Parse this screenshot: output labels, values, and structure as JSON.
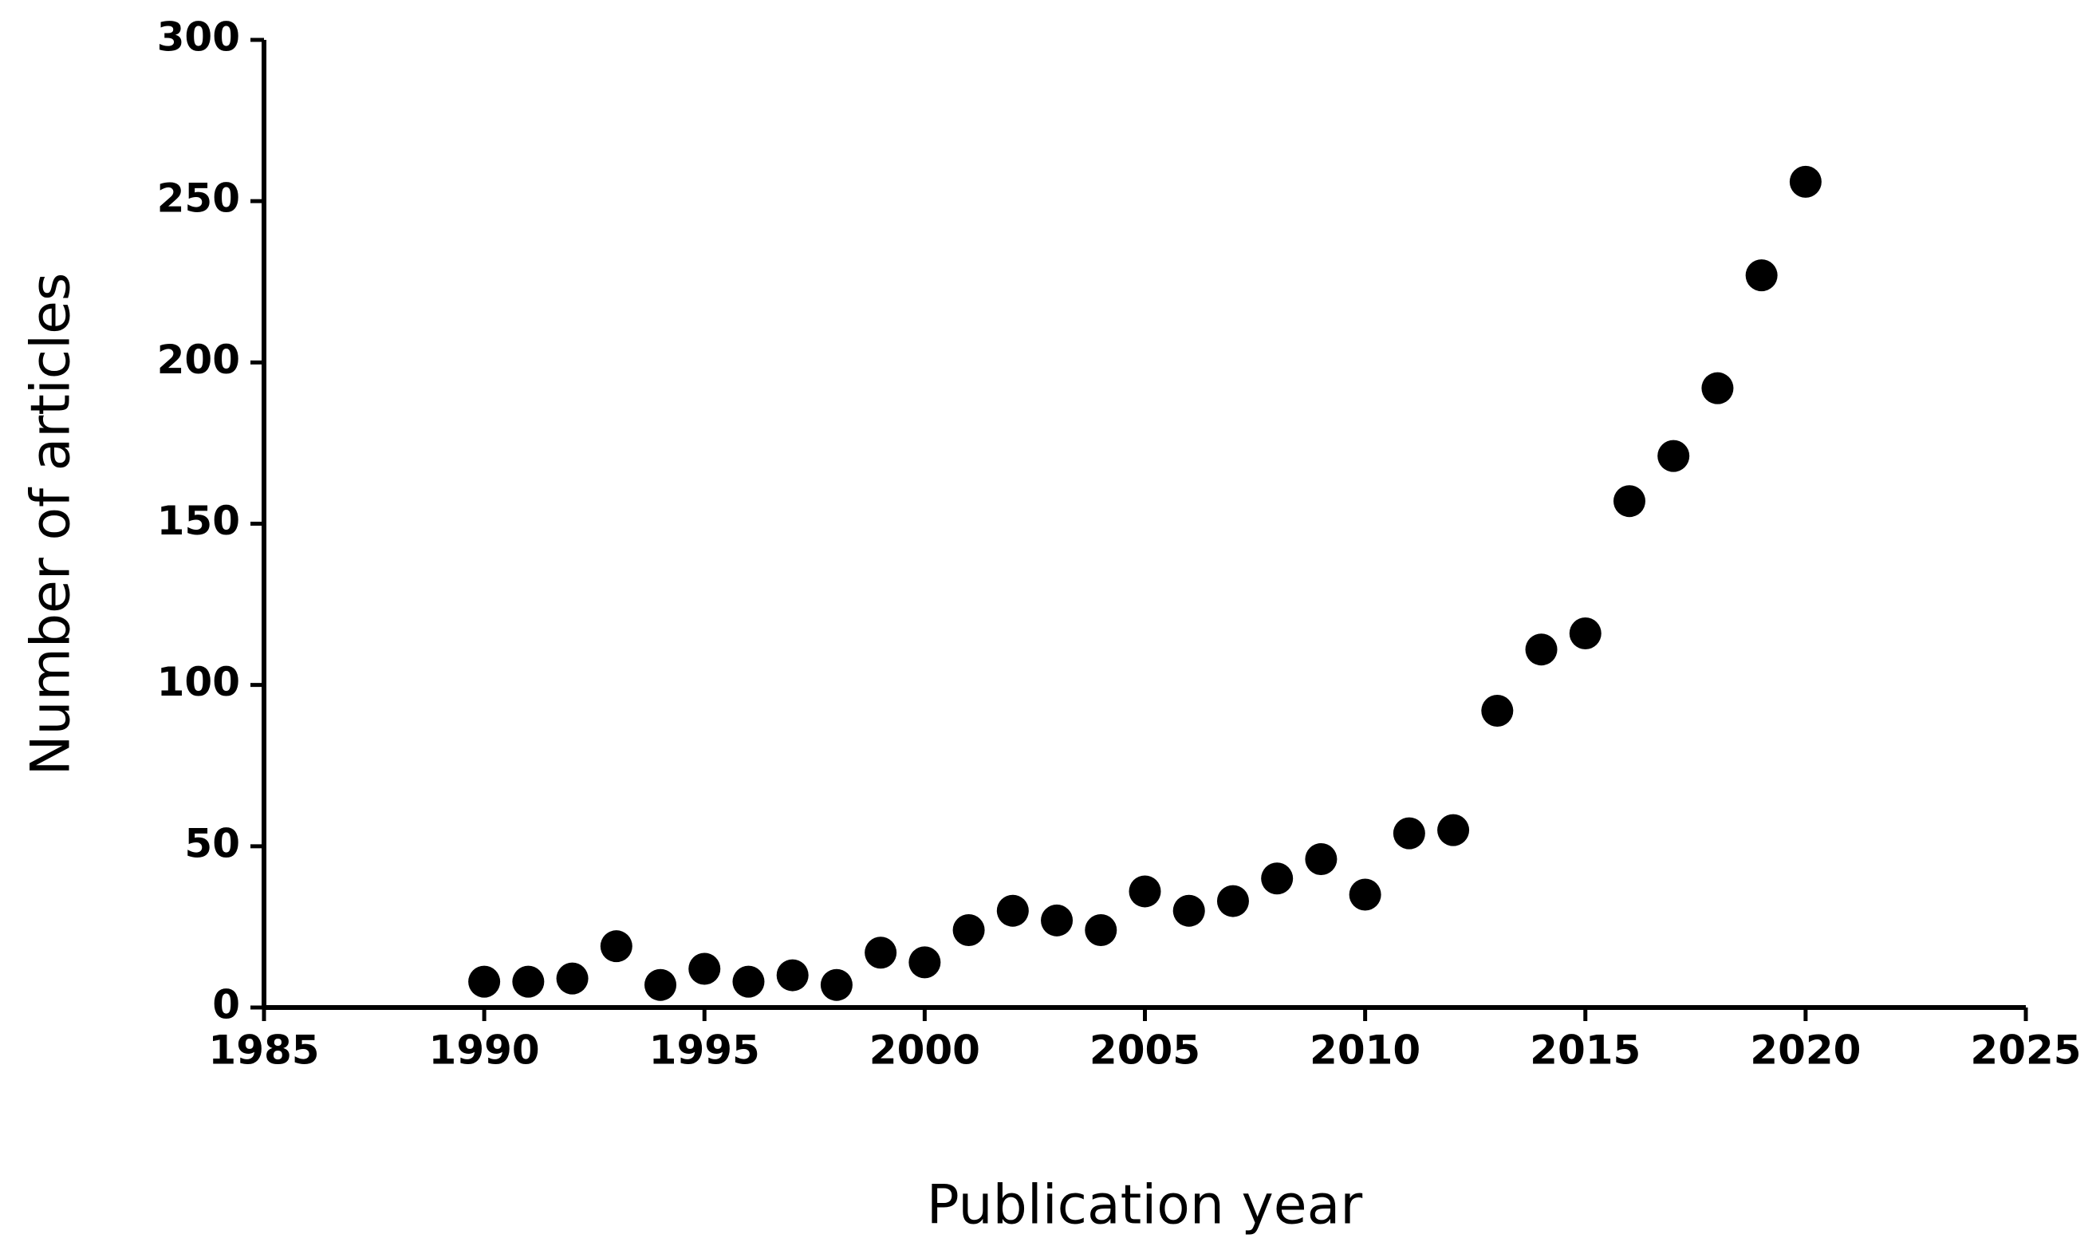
{
  "chart_data": {
    "type": "scatter",
    "x_label": "Publication year",
    "y_label": "Number of articles",
    "x": [
      1990,
      1991,
      1992,
      1993,
      1994,
      1995,
      1996,
      1997,
      1998,
      1999,
      2000,
      2001,
      2002,
      2003,
      2004,
      2005,
      2006,
      2007,
      2008,
      2009,
      2010,
      2011,
      2012,
      2013,
      2014,
      2015,
      2016,
      2017,
      2018,
      2019,
      2020
    ],
    "values": [
      8,
      8,
      9,
      19,
      7,
      12,
      8,
      10,
      7,
      17,
      14,
      24,
      30,
      27,
      24,
      36,
      30,
      33,
      40,
      46,
      35,
      54,
      55,
      92,
      111,
      116,
      157,
      171,
      192,
      227,
      256
    ],
    "color": "#000000",
    "xlim": [
      1985,
      2025
    ],
    "xticks": [
      1985,
      1990,
      1995,
      2000,
      2005,
      2010,
      2015,
      2020,
      2025
    ],
    "ylim": [
      0,
      300
    ],
    "yticks": [
      0,
      50,
      100,
      150,
      200,
      250,
      300
    ],
    "grid": false
  }
}
